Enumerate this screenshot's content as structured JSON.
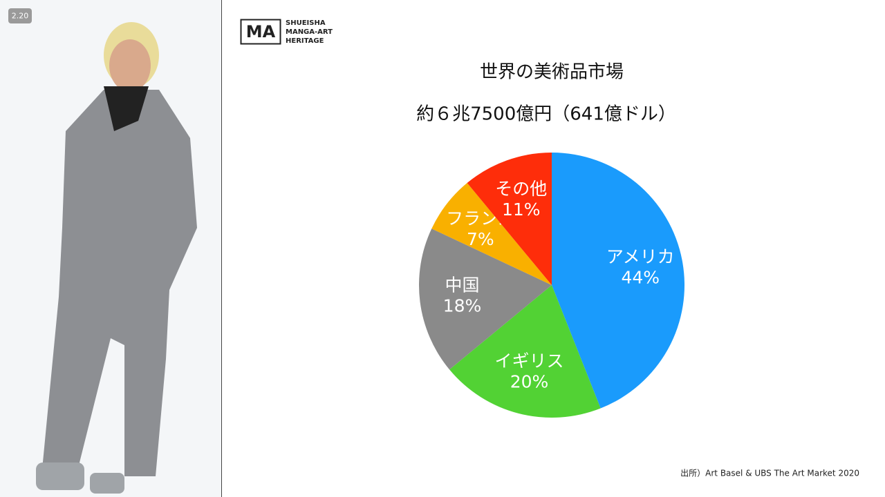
{
  "badge": "2.20",
  "logo": {
    "mark": "MA",
    "lines": [
      "SHUEISHA",
      "MANGA-ART",
      "HERITAGE"
    ]
  },
  "source": "出所）Art Basel & UBS The Art Market 2020",
  "chart_data": {
    "type": "pie",
    "title": "世界の美術品市場",
    "subtitle": "約６兆7500億円（641億ドル）",
    "categories": [
      "アメリカ",
      "イギリス",
      "中国",
      "フランス",
      "その他"
    ],
    "values": [
      44,
      20,
      18,
      7,
      11
    ],
    "value_labels": [
      "44%",
      "20%",
      "18%",
      "7%",
      "11%"
    ],
    "colors": [
      "#1a9bfc",
      "#52d234",
      "#8a8a8a",
      "#f9b000",
      "#fe2d0a"
    ]
  }
}
